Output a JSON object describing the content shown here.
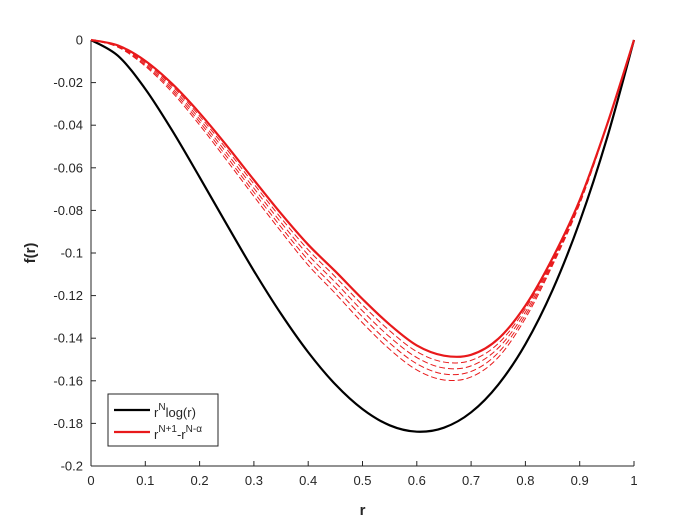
{
  "chart_data": {
    "type": "line",
    "xlabel": "r",
    "ylabel": "f(r)",
    "xlim": [
      0,
      1
    ],
    "ylim": [
      -0.2,
      0
    ],
    "x_ticks": [
      "0",
      "0.1",
      "0.2",
      "0.3",
      "0.4",
      "0.5",
      "0.6",
      "0.7",
      "0.8",
      "0.9",
      "1"
    ],
    "y_ticks": [
      "0",
      "-0.02",
      "-0.04",
      "-0.06",
      "-0.08",
      "-0.1",
      "-0.12",
      "-0.14",
      "-0.16",
      "-0.18",
      "-0.2"
    ],
    "grid": false,
    "legend_position": "bottom-left",
    "legend": [
      {
        "base": "r",
        "sup": "N",
        "rest": "log(r)",
        "color": "#000000",
        "style": "solid"
      },
      {
        "base": "r",
        "sup": "N+1",
        "rest": "-r",
        "sup2": "N-α",
        "color": "#e8191b",
        "style": "solid"
      }
    ],
    "series": [
      {
        "color": "#000000",
        "style": "solid",
        "x": [
          0,
          0.05,
          0.1,
          0.15,
          0.2,
          0.25,
          0.3,
          0.35,
          0.4,
          0.45,
          0.5,
          0.55,
          0.6,
          0.65,
          0.7,
          0.75,
          0.8,
          0.85,
          0.9,
          0.95,
          1
        ],
        "y": [
          0,
          -0.0075,
          -0.023,
          -0.0427,
          -0.0644,
          -0.0866,
          -0.1084,
          -0.1286,
          -0.1466,
          -0.1617,
          -0.1733,
          -0.1809,
          -0.1839,
          -0.182,
          -0.1748,
          -0.1618,
          -0.1428,
          -0.1174,
          -0.0853,
          -0.0463,
          0
        ]
      },
      {
        "color": "#e8191b",
        "style": "solid",
        "x": [
          0,
          0.05,
          0.1,
          0.15,
          0.2,
          0.25,
          0.3,
          0.35,
          0.4,
          0.45,
          0.5,
          0.55,
          0.6,
          0.65,
          0.7,
          0.75,
          0.8,
          0.85,
          0.9,
          0.95,
          1
        ],
        "y": [
          0,
          -0.0026,
          -0.0098,
          -0.0207,
          -0.0343,
          -0.0496,
          -0.0657,
          -0.0815,
          -0.0961,
          -0.1086,
          -0.1216,
          -0.1336,
          -0.1434,
          -0.1482,
          -0.1478,
          -0.1403,
          -0.1247,
          -0.1024,
          -0.0752,
          -0.04,
          0
        ]
      },
      {
        "color": "#e8191b",
        "style": "dashed",
        "x": [
          0,
          0.05,
          0.1,
          0.15,
          0.2,
          0.25,
          0.3,
          0.35,
          0.4,
          0.45,
          0.5,
          0.55,
          0.6,
          0.65,
          0.7,
          0.75,
          0.8,
          0.85,
          0.9,
          0.95,
          1
        ],
        "y": [
          0,
          -0.0028,
          -0.0104,
          -0.0217,
          -0.0357,
          -0.0513,
          -0.0676,
          -0.0836,
          -0.0985,
          -0.1112,
          -0.1244,
          -0.1365,
          -0.1463,
          -0.1512,
          -0.1504,
          -0.1425,
          -0.1262,
          -0.1033,
          -0.0757,
          -0.0401,
          0
        ]
      },
      {
        "color": "#e8191b",
        "style": "dashed",
        "x": [
          0,
          0.05,
          0.1,
          0.15,
          0.2,
          0.25,
          0.3,
          0.35,
          0.4,
          0.45,
          0.5,
          0.55,
          0.6,
          0.65,
          0.7,
          0.75,
          0.8,
          0.85,
          0.9,
          0.95,
          1
        ],
        "y": [
          0,
          -0.003,
          -0.011,
          -0.0227,
          -0.0371,
          -0.0531,
          -0.0696,
          -0.0857,
          -0.1009,
          -0.1138,
          -0.1272,
          -0.1394,
          -0.1491,
          -0.154,
          -0.153,
          -0.1446,
          -0.1277,
          -0.1041,
          -0.0761,
          -0.0402,
          0
        ]
      },
      {
        "color": "#e8191b",
        "style": "dashed",
        "x": [
          0,
          0.05,
          0.1,
          0.15,
          0.2,
          0.25,
          0.3,
          0.35,
          0.4,
          0.45,
          0.5,
          0.55,
          0.6,
          0.65,
          0.7,
          0.75,
          0.8,
          0.85,
          0.9,
          0.95,
          1
        ],
        "y": [
          0,
          -0.0032,
          -0.0117,
          -0.0237,
          -0.0385,
          -0.0548,
          -0.0715,
          -0.0878,
          -0.1033,
          -0.1164,
          -0.13,
          -0.1423,
          -0.152,
          -0.1568,
          -0.1556,
          -0.1468,
          -0.1292,
          -0.105,
          -0.0766,
          -0.0403,
          0
        ]
      },
      {
        "color": "#e8191b",
        "style": "dashed",
        "x": [
          0,
          0.05,
          0.1,
          0.15,
          0.2,
          0.25,
          0.3,
          0.35,
          0.4,
          0.45,
          0.5,
          0.55,
          0.6,
          0.65,
          0.7,
          0.75,
          0.8,
          0.85,
          0.9,
          0.95,
          1
        ],
        "y": [
          0,
          -0.0034,
          -0.0123,
          -0.0247,
          -0.0399,
          -0.0565,
          -0.0734,
          -0.0899,
          -0.1057,
          -0.119,
          -0.1328,
          -0.1452,
          -0.1549,
          -0.1596,
          -0.1582,
          -0.149,
          -0.1307,
          -0.1058,
          -0.077,
          -0.0404,
          0
        ]
      }
    ]
  }
}
